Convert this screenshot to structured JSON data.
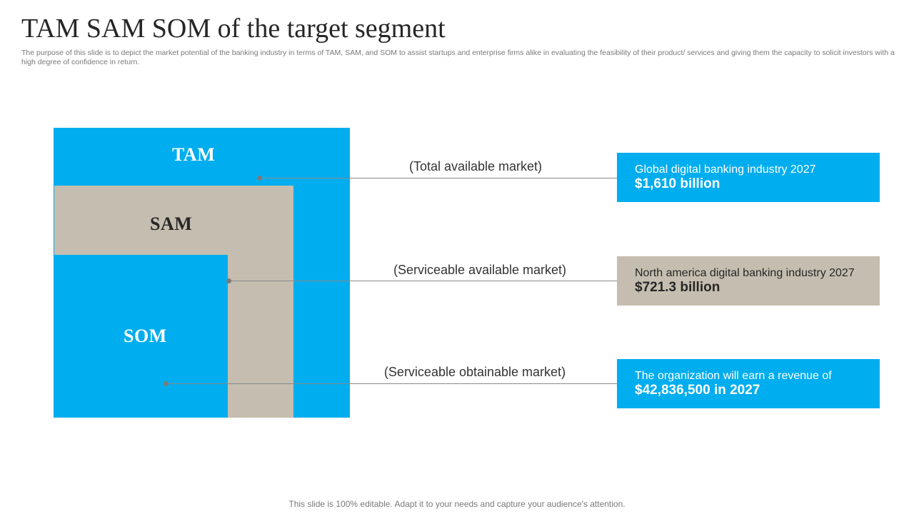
{
  "slide": {
    "title": "TAM SAM SOM of the target segment",
    "subtitle": "The purpose of this slide is to depict the market potential of the banking industry in terms of TAM,  SAM,  and SOM to assist startups and enterprise firms alike in evaluating the feasibility of their product/ services and giving them the capacity to solicit investors with a high degree of confidence in return.",
    "footer": "This slide is 100% editable. Adapt it to your needs and capture your audience's attention."
  },
  "colors": {
    "blue": "#00adee",
    "beige": "#c5beb0",
    "text": "#262626"
  },
  "diagram": {
    "tam_label": "TAM",
    "sam_label": "SAM",
    "som_label": "SOM"
  },
  "markets": [
    {
      "name": "(Total available market)",
      "description": "Global digital banking industry 2027",
      "value": "$1,610 billion"
    },
    {
      "name": "(Serviceable available market)",
      "description": "North america digital banking industry 2027",
      "value": "$721.3 billion"
    },
    {
      "name": "(Serviceable obtainable market)",
      "description": "The organization will earn a revenue of",
      "value": "$42,836,500 in 2027"
    }
  ]
}
